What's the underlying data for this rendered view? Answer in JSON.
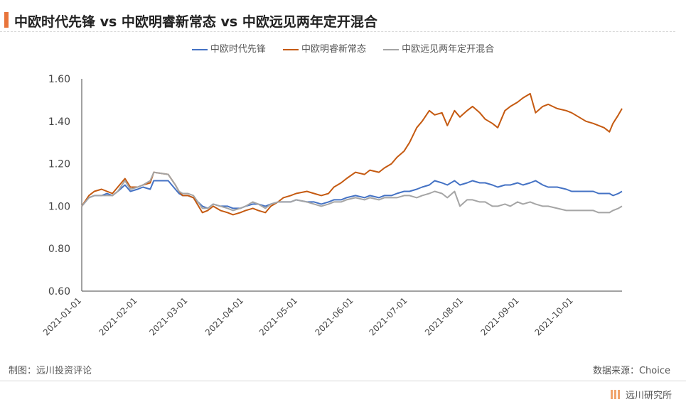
{
  "chart_data": {
    "type": "line",
    "title": "中欧时代先锋 vs 中欧明睿新常态 vs 中欧远见两年定开混合",
    "xlabel": "",
    "ylabel": "",
    "ylim": [
      0.6,
      1.6
    ],
    "yticks": [
      "0.60",
      "0.80",
      "1.00",
      "1.20",
      "1.40",
      "1.60"
    ],
    "xlim": [
      "2021-01-01",
      "2021-10-28"
    ],
    "xticks": [
      "2021-01-01",
      "2021-02-01",
      "2021-03-01",
      "2021-04-01",
      "2021-05-01",
      "2021-06-01",
      "2021-07-01",
      "2021-08-01",
      "2021-09-01",
      "2021-10-01"
    ],
    "legend_position": "top-center",
    "grid": false,
    "series": [
      {
        "name": "中欧时代先锋",
        "color": "#4472c4",
        "points": [
          [
            "2021-01-01",
            1.0
          ],
          [
            "2021-01-05",
            1.04
          ],
          [
            "2021-01-08",
            1.05
          ],
          [
            "2021-01-12",
            1.05
          ],
          [
            "2021-01-15",
            1.06
          ],
          [
            "2021-01-18",
            1.05
          ],
          [
            "2021-01-21",
            1.07
          ],
          [
            "2021-01-25",
            1.1
          ],
          [
            "2021-01-28",
            1.07
          ],
          [
            "2021-02-01",
            1.08
          ],
          [
            "2021-02-04",
            1.09
          ],
          [
            "2021-02-08",
            1.08
          ],
          [
            "2021-02-10",
            1.12
          ],
          [
            "2021-02-18",
            1.12
          ],
          [
            "2021-02-22",
            1.08
          ],
          [
            "2021-02-24",
            1.06
          ],
          [
            "2021-02-26",
            1.05
          ],
          [
            "2021-03-01",
            1.05
          ],
          [
            "2021-03-04",
            1.04
          ],
          [
            "2021-03-09",
            1.0
          ],
          [
            "2021-03-12",
            0.99
          ],
          [
            "2021-03-15",
            1.01
          ],
          [
            "2021-03-19",
            1.0
          ],
          [
            "2021-03-23",
            1.0
          ],
          [
            "2021-03-26",
            0.99
          ],
          [
            "2021-03-30",
            0.99
          ],
          [
            "2021-04-02",
            1.0
          ],
          [
            "2021-04-06",
            1.01
          ],
          [
            "2021-04-09",
            1.01
          ],
          [
            "2021-04-13",
            1.0
          ],
          [
            "2021-04-16",
            1.01
          ],
          [
            "2021-04-20",
            1.02
          ],
          [
            "2021-04-23",
            1.02
          ],
          [
            "2021-04-27",
            1.02
          ],
          [
            "2021-04-30",
            1.03
          ],
          [
            "2021-05-06",
            1.02
          ],
          [
            "2021-05-10",
            1.02
          ],
          [
            "2021-05-14",
            1.01
          ],
          [
            "2021-05-18",
            1.02
          ],
          [
            "2021-05-21",
            1.03
          ],
          [
            "2021-05-25",
            1.03
          ],
          [
            "2021-05-28",
            1.04
          ],
          [
            "2021-06-02",
            1.05
          ],
          [
            "2021-06-07",
            1.04
          ],
          [
            "2021-06-10",
            1.05
          ],
          [
            "2021-06-15",
            1.04
          ],
          [
            "2021-06-18",
            1.05
          ],
          [
            "2021-06-22",
            1.05
          ],
          [
            "2021-06-25",
            1.06
          ],
          [
            "2021-06-29",
            1.07
          ],
          [
            "2021-07-02",
            1.07
          ],
          [
            "2021-07-06",
            1.08
          ],
          [
            "2021-07-09",
            1.09
          ],
          [
            "2021-07-13",
            1.1
          ],
          [
            "2021-07-16",
            1.12
          ],
          [
            "2021-07-20",
            1.11
          ],
          [
            "2021-07-23",
            1.1
          ],
          [
            "2021-07-27",
            1.12
          ],
          [
            "2021-07-30",
            1.1
          ],
          [
            "2021-08-03",
            1.11
          ],
          [
            "2021-08-06",
            1.12
          ],
          [
            "2021-08-10",
            1.11
          ],
          [
            "2021-08-13",
            1.11
          ],
          [
            "2021-08-17",
            1.1
          ],
          [
            "2021-08-20",
            1.09
          ],
          [
            "2021-08-24",
            1.1
          ],
          [
            "2021-08-27",
            1.1
          ],
          [
            "2021-08-31",
            1.11
          ],
          [
            "2021-09-03",
            1.1
          ],
          [
            "2021-09-07",
            1.11
          ],
          [
            "2021-09-10",
            1.12
          ],
          [
            "2021-09-14",
            1.1
          ],
          [
            "2021-09-17",
            1.09
          ],
          [
            "2021-09-22",
            1.09
          ],
          [
            "2021-09-27",
            1.08
          ],
          [
            "2021-09-30",
            1.07
          ],
          [
            "2021-10-08",
            1.07
          ],
          [
            "2021-10-12",
            1.07
          ],
          [
            "2021-10-15",
            1.06
          ],
          [
            "2021-10-18",
            1.06
          ],
          [
            "2021-10-21",
            1.06
          ],
          [
            "2021-10-23",
            1.05
          ],
          [
            "2021-10-26",
            1.06
          ],
          [
            "2021-10-28",
            1.07
          ]
        ]
      },
      {
        "name": "中欧明睿新常态",
        "color": "#c55a11",
        "points": [
          [
            "2021-01-01",
            1.0
          ],
          [
            "2021-01-05",
            1.05
          ],
          [
            "2021-01-08",
            1.07
          ],
          [
            "2021-01-12",
            1.08
          ],
          [
            "2021-01-15",
            1.07
          ],
          [
            "2021-01-18",
            1.06
          ],
          [
            "2021-01-21",
            1.09
          ],
          [
            "2021-01-25",
            1.13
          ],
          [
            "2021-01-28",
            1.09
          ],
          [
            "2021-02-01",
            1.09
          ],
          [
            "2021-02-04",
            1.1
          ],
          [
            "2021-02-08",
            1.11
          ],
          [
            "2021-02-10",
            1.16
          ],
          [
            "2021-02-18",
            1.15
          ],
          [
            "2021-02-22",
            1.1
          ],
          [
            "2021-02-24",
            1.07
          ],
          [
            "2021-02-26",
            1.05
          ],
          [
            "2021-03-01",
            1.05
          ],
          [
            "2021-03-04",
            1.04
          ],
          [
            "2021-03-09",
            0.97
          ],
          [
            "2021-03-12",
            0.98
          ],
          [
            "2021-03-15",
            1.0
          ],
          [
            "2021-03-19",
            0.98
          ],
          [
            "2021-03-23",
            0.97
          ],
          [
            "2021-03-26",
            0.96
          ],
          [
            "2021-03-30",
            0.97
          ],
          [
            "2021-04-02",
            0.98
          ],
          [
            "2021-04-06",
            0.99
          ],
          [
            "2021-04-09",
            0.98
          ],
          [
            "2021-04-13",
            0.97
          ],
          [
            "2021-04-16",
            1.0
          ],
          [
            "2021-04-20",
            1.02
          ],
          [
            "2021-04-23",
            1.04
          ],
          [
            "2021-04-27",
            1.05
          ],
          [
            "2021-04-30",
            1.06
          ],
          [
            "2021-05-06",
            1.07
          ],
          [
            "2021-05-10",
            1.06
          ],
          [
            "2021-05-14",
            1.05
          ],
          [
            "2021-05-18",
            1.06
          ],
          [
            "2021-05-21",
            1.09
          ],
          [
            "2021-05-25",
            1.11
          ],
          [
            "2021-05-28",
            1.13
          ],
          [
            "2021-06-02",
            1.16
          ],
          [
            "2021-06-07",
            1.15
          ],
          [
            "2021-06-10",
            1.17
          ],
          [
            "2021-06-15",
            1.16
          ],
          [
            "2021-06-18",
            1.18
          ],
          [
            "2021-06-22",
            1.2
          ],
          [
            "2021-06-25",
            1.23
          ],
          [
            "2021-06-29",
            1.26
          ],
          [
            "2021-07-02",
            1.3
          ],
          [
            "2021-07-06",
            1.37
          ],
          [
            "2021-07-09",
            1.4
          ],
          [
            "2021-07-13",
            1.45
          ],
          [
            "2021-07-16",
            1.43
          ],
          [
            "2021-07-20",
            1.44
          ],
          [
            "2021-07-23",
            1.38
          ],
          [
            "2021-07-27",
            1.45
          ],
          [
            "2021-07-30",
            1.42
          ],
          [
            "2021-08-03",
            1.45
          ],
          [
            "2021-08-06",
            1.47
          ],
          [
            "2021-08-10",
            1.44
          ],
          [
            "2021-08-13",
            1.41
          ],
          [
            "2021-08-17",
            1.39
          ],
          [
            "2021-08-20",
            1.37
          ],
          [
            "2021-08-24",
            1.45
          ],
          [
            "2021-08-27",
            1.47
          ],
          [
            "2021-08-31",
            1.49
          ],
          [
            "2021-09-03",
            1.51
          ],
          [
            "2021-09-07",
            1.53
          ],
          [
            "2021-09-10",
            1.44
          ],
          [
            "2021-09-14",
            1.47
          ],
          [
            "2021-09-17",
            1.48
          ],
          [
            "2021-09-22",
            1.46
          ],
          [
            "2021-09-27",
            1.45
          ],
          [
            "2021-09-30",
            1.44
          ],
          [
            "2021-10-08",
            1.4
          ],
          [
            "2021-10-12",
            1.39
          ],
          [
            "2021-10-15",
            1.38
          ],
          [
            "2021-10-18",
            1.37
          ],
          [
            "2021-10-21",
            1.35
          ],
          [
            "2021-10-23",
            1.39
          ],
          [
            "2021-10-26",
            1.43
          ],
          [
            "2021-10-28",
            1.46
          ]
        ]
      },
      {
        "name": "中欧远见两年定开混合",
        "color": "#a5a5a5",
        "points": [
          [
            "2021-01-01",
            1.0
          ],
          [
            "2021-01-05",
            1.04
          ],
          [
            "2021-01-08",
            1.05
          ],
          [
            "2021-01-12",
            1.05
          ],
          [
            "2021-01-15",
            1.05
          ],
          [
            "2021-01-18",
            1.05
          ],
          [
            "2021-01-21",
            1.07
          ],
          [
            "2021-01-25",
            1.12
          ],
          [
            "2021-01-28",
            1.08
          ],
          [
            "2021-02-01",
            1.09
          ],
          [
            "2021-02-04",
            1.1
          ],
          [
            "2021-02-08",
            1.12
          ],
          [
            "2021-02-10",
            1.16
          ],
          [
            "2021-02-18",
            1.15
          ],
          [
            "2021-02-22",
            1.1
          ],
          [
            "2021-02-24",
            1.07
          ],
          [
            "2021-02-26",
            1.06
          ],
          [
            "2021-03-01",
            1.06
          ],
          [
            "2021-03-04",
            1.05
          ],
          [
            "2021-03-09",
            0.99
          ],
          [
            "2021-03-12",
            0.99
          ],
          [
            "2021-03-15",
            1.01
          ],
          [
            "2021-03-19",
            1.0
          ],
          [
            "2021-03-23",
            0.99
          ],
          [
            "2021-03-26",
            0.98
          ],
          [
            "2021-03-30",
            0.99
          ],
          [
            "2021-04-02",
            1.0
          ],
          [
            "2021-04-06",
            1.02
          ],
          [
            "2021-04-09",
            1.01
          ],
          [
            "2021-04-13",
            0.99
          ],
          [
            "2021-04-16",
            1.01
          ],
          [
            "2021-04-20",
            1.02
          ],
          [
            "2021-04-23",
            1.02
          ],
          [
            "2021-04-27",
            1.02
          ],
          [
            "2021-04-30",
            1.03
          ],
          [
            "2021-05-06",
            1.02
          ],
          [
            "2021-05-10",
            1.01
          ],
          [
            "2021-05-14",
            1.0
          ],
          [
            "2021-05-18",
            1.01
          ],
          [
            "2021-05-21",
            1.02
          ],
          [
            "2021-05-25",
            1.02
          ],
          [
            "2021-05-28",
            1.03
          ],
          [
            "2021-06-02",
            1.04
          ],
          [
            "2021-06-07",
            1.03
          ],
          [
            "2021-06-10",
            1.04
          ],
          [
            "2021-06-15",
            1.03
          ],
          [
            "2021-06-18",
            1.04
          ],
          [
            "2021-06-22",
            1.04
          ],
          [
            "2021-06-25",
            1.04
          ],
          [
            "2021-06-29",
            1.05
          ],
          [
            "2021-07-02",
            1.05
          ],
          [
            "2021-07-06",
            1.04
          ],
          [
            "2021-07-09",
            1.05
          ],
          [
            "2021-07-13",
            1.06
          ],
          [
            "2021-07-16",
            1.07
          ],
          [
            "2021-07-20",
            1.06
          ],
          [
            "2021-07-23",
            1.04
          ],
          [
            "2021-07-27",
            1.07
          ],
          [
            "2021-07-30",
            1.0
          ],
          [
            "2021-08-03",
            1.03
          ],
          [
            "2021-08-06",
            1.03
          ],
          [
            "2021-08-10",
            1.02
          ],
          [
            "2021-08-13",
            1.02
          ],
          [
            "2021-08-17",
            1.0
          ],
          [
            "2021-08-20",
            1.0
          ],
          [
            "2021-08-24",
            1.01
          ],
          [
            "2021-08-27",
            1.0
          ],
          [
            "2021-08-31",
            1.02
          ],
          [
            "2021-09-03",
            1.01
          ],
          [
            "2021-09-07",
            1.02
          ],
          [
            "2021-09-10",
            1.01
          ],
          [
            "2021-09-14",
            1.0
          ],
          [
            "2021-09-17",
            1.0
          ],
          [
            "2021-09-22",
            0.99
          ],
          [
            "2021-09-27",
            0.98
          ],
          [
            "2021-09-30",
            0.98
          ],
          [
            "2021-10-08",
            0.98
          ],
          [
            "2021-10-12",
            0.98
          ],
          [
            "2021-10-15",
            0.97
          ],
          [
            "2021-10-18",
            0.97
          ],
          [
            "2021-10-21",
            0.97
          ],
          [
            "2021-10-23",
            0.98
          ],
          [
            "2021-10-26",
            0.99
          ],
          [
            "2021-10-28",
            1.0
          ]
        ]
      }
    ]
  },
  "footer": {
    "made_by": "制图：远川投资评论",
    "source": "数据来源：Choice",
    "brand": "远川研究所"
  }
}
